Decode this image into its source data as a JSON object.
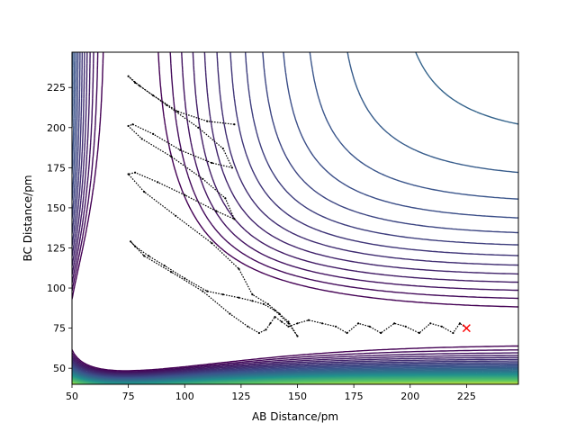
{
  "chart_data": {
    "type": "contour",
    "title": "",
    "xlabel": "AB Distance/pm",
    "ylabel": "BC Distance/pm",
    "xlim": [
      50,
      248
    ],
    "ylim": [
      40,
      247
    ],
    "xticks": [
      50,
      75,
      100,
      125,
      150,
      175,
      200,
      225
    ],
    "yticks": [
      50,
      75,
      100,
      125,
      150,
      175,
      200,
      225
    ],
    "colormap": [
      "#440154",
      "#3b528b",
      "#21918c",
      "#5ec962",
      "#fde725"
    ],
    "series": [
      {
        "name": "trajectory",
        "type": "line",
        "color": "#000000",
        "x": [
          122,
          110,
          97,
          86,
          78,
          75,
          80,
          92,
          106,
          117,
          121,
          112,
          98,
          86,
          77,
          75,
          81,
          94,
          108,
          118,
          122,
          114,
          100,
          88,
          78,
          75,
          82,
          96,
          112,
          124,
          130,
          137,
          142,
          146,
          150,
          146,
          140,
          135,
          130,
          124,
          117,
          110,
          100,
          91,
          84,
          78,
          76,
          82,
          94,
          108,
          120,
          128,
          133,
          136,
          138,
          140,
          143,
          146,
          150,
          155,
          161,
          167,
          172,
          177,
          182,
          187,
          193,
          198,
          204,
          209,
          214,
          219,
          222,
          225
        ],
        "y": [
          202,
          204,
          210,
          220,
          228,
          232,
          226,
          214,
          200,
          187,
          175,
          178,
          186,
          196,
          202,
          201,
          193,
          182,
          168,
          156,
          143,
          148,
          158,
          166,
          172,
          171,
          160,
          145,
          128,
          112,
          96,
          90,
          84,
          79,
          70,
          78,
          86,
          90,
          92,
          94,
          96,
          98,
          106,
          114,
          120,
          126,
          129,
          120,
          110,
          98,
          84,
          76,
          72,
          74,
          78,
          82,
          79,
          76,
          78,
          80,
          78,
          76,
          72,
          78,
          76,
          72,
          78,
          76,
          72,
          78,
          76,
          72,
          78,
          75
        ]
      },
      {
        "name": "final-position",
        "type": "scatter",
        "marker": "x",
        "color": "#ff0000",
        "x": [
          225
        ],
        "y": [
          75
        ]
      }
    ]
  }
}
